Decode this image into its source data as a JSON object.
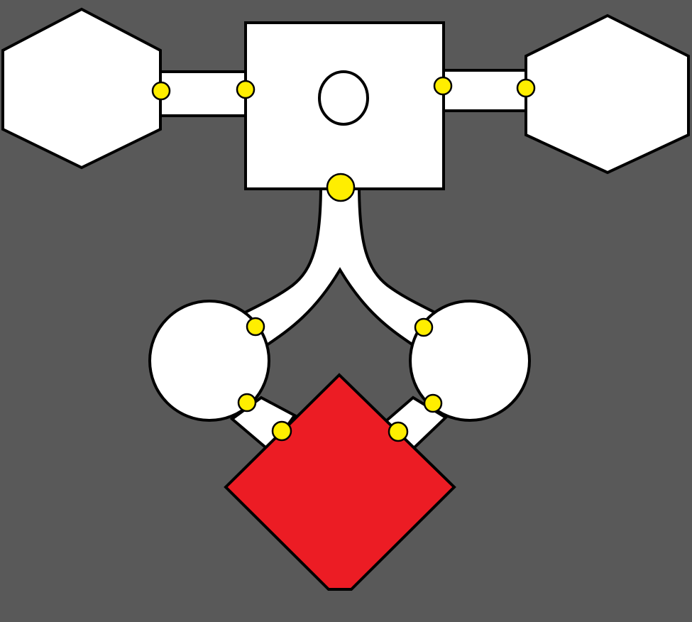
{
  "colors": {
    "background": "#595959",
    "room_fill": "#ffffff",
    "outline": "#000000",
    "door": "#ffee00",
    "boss_room": "#ec1c24"
  },
  "rooms": [
    {
      "id": "hexagon-room-left",
      "shape": "hexagon",
      "role": "room"
    },
    {
      "id": "square-room-center",
      "shape": "square",
      "role": "room"
    },
    {
      "id": "hexagon-room-right",
      "shape": "hexagon",
      "role": "room"
    },
    {
      "id": "circle-room-left",
      "shape": "circle",
      "role": "room"
    },
    {
      "id": "circle-room-right",
      "shape": "circle",
      "role": "room"
    },
    {
      "id": "diamond-room-bottom",
      "shape": "diamond",
      "role": "goal"
    }
  ],
  "connections": [
    {
      "from": "hexagon-room-left",
      "to": "square-room-center"
    },
    {
      "from": "square-room-center",
      "to": "hexagon-room-right"
    },
    {
      "from": "square-room-center",
      "to": "circle-room-left"
    },
    {
      "from": "square-room-center",
      "to": "circle-room-right"
    },
    {
      "from": "circle-room-left",
      "to": "diamond-room-bottom"
    },
    {
      "from": "circle-room-right",
      "to": "diamond-room-bottom"
    }
  ],
  "door_count": 11
}
